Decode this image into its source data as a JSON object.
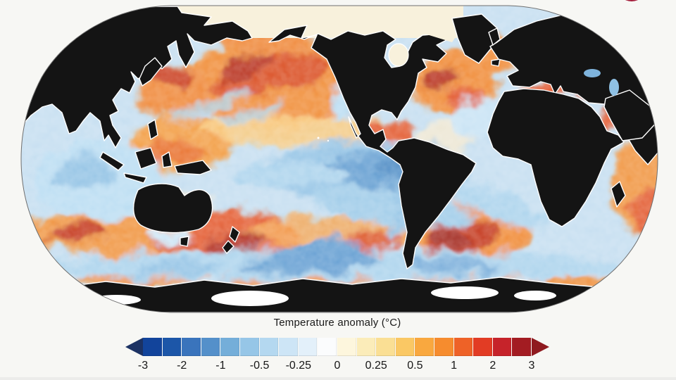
{
  "page": {
    "background_color": "#f7f7f4",
    "bottom_strip_color": "#ececea"
  },
  "branding": {
    "logo_partial_color": "#a51f3c"
  },
  "map": {
    "projection": "Robinson",
    "description": "Global sea surface temperature anomaly map; oceans coloured by anomaly, land solid black with white coastlines",
    "land_color": "#141414",
    "coastline_color": "#ffffff",
    "arctic_ice_color": "#f8f1dc",
    "antarctic_ice_color": "#ffffff",
    "ocean_base_color": "#c3ddf0",
    "outline_color": "#6f6f6f"
  },
  "legend": {
    "title": "Temperature anomaly (°C)",
    "ticks": [
      "-3",
      "-2",
      "-1",
      "-0.5",
      "-0.25",
      "0",
      "0.25",
      "0.5",
      "1",
      "2",
      "3"
    ],
    "segment_colors": [
      "#12449b",
      "#1c56a8",
      "#3a74bc",
      "#5490ca",
      "#74aed9",
      "#96c6e7",
      "#b4d8f0",
      "#cde5f6",
      "#e3f0fa",
      "#fbfcfd",
      "#fdf6dd",
      "#fbecb9",
      "#fadf94",
      "#fac864",
      "#f9a83f",
      "#f68c2e",
      "#ee6227",
      "#e23c24",
      "#c6232a",
      "#a31c22"
    ],
    "arrow_left_color": "#1c3263",
    "arrow_right_color": "#8f1a1f"
  },
  "chart_data": {
    "type": "heatmap",
    "title": "Temperature anomaly (°C)",
    "units": "°C",
    "projection": "Robinson",
    "colorbar": {
      "tick_values": [
        -3,
        -2,
        -1,
        -0.5,
        -0.25,
        0,
        0.25,
        0.5,
        1,
        2,
        3
      ],
      "range_min": -3,
      "range_max": 3,
      "open_ended_below": true,
      "open_ended_above": true,
      "colors": [
        "#12449b",
        "#1c56a8",
        "#3a74bc",
        "#5490ca",
        "#74aed9",
        "#96c6e7",
        "#b4d8f0",
        "#cde5f6",
        "#e3f0fa",
        "#fbfcfd",
        "#fdf6dd",
        "#fbecb9",
        "#fadf94",
        "#fac864",
        "#f9a83f",
        "#f68c2e",
        "#ee6227",
        "#e23c24",
        "#c6232a",
        "#a31c22"
      ]
    },
    "regions": [
      {
        "region": "North Pacific",
        "anomaly_c": 2
      },
      {
        "region": "Northwest Pacific (Kuroshio region)",
        "anomaly_c": 2.5
      },
      {
        "region": "Western tropical Pacific warm pool",
        "anomaly_c": 0.75
      },
      {
        "region": "Central/eastern equatorial Pacific (La Nina cool tongue)",
        "anomaly_c": -1
      },
      {
        "region": "California coast",
        "anomaly_c": -0.5
      },
      {
        "region": "Gulf of Mexico and Caribbean",
        "anomaly_c": 1.5
      },
      {
        "region": "Northwest Atlantic (Gulf Stream)",
        "anomaly_c": 3
      },
      {
        "region": "Mediterranean Sea",
        "anomaly_c": 2
      },
      {
        "region": "Tropical Indian Ocean",
        "anomaly_c": -0.5
      },
      {
        "region": "Southern Indian Ocean ~40S band",
        "anomaly_c": 2
      },
      {
        "region": "Tasman Sea / south of New Zealand",
        "anomaly_c": 2.5
      },
      {
        "region": "Southwest Atlantic (Argentine Basin)",
        "anomaly_c": 2.5
      },
      {
        "region": "Equatorial Atlantic",
        "anomaly_c": -0.25
      },
      {
        "region": "Southern Ocean",
        "anomaly_c": -1
      },
      {
        "region": "Antarctic coastal fringe",
        "anomaly_c": 1
      },
      {
        "region": "Arctic Ocean (ice, no data)",
        "anomaly_c": null
      }
    ]
  }
}
